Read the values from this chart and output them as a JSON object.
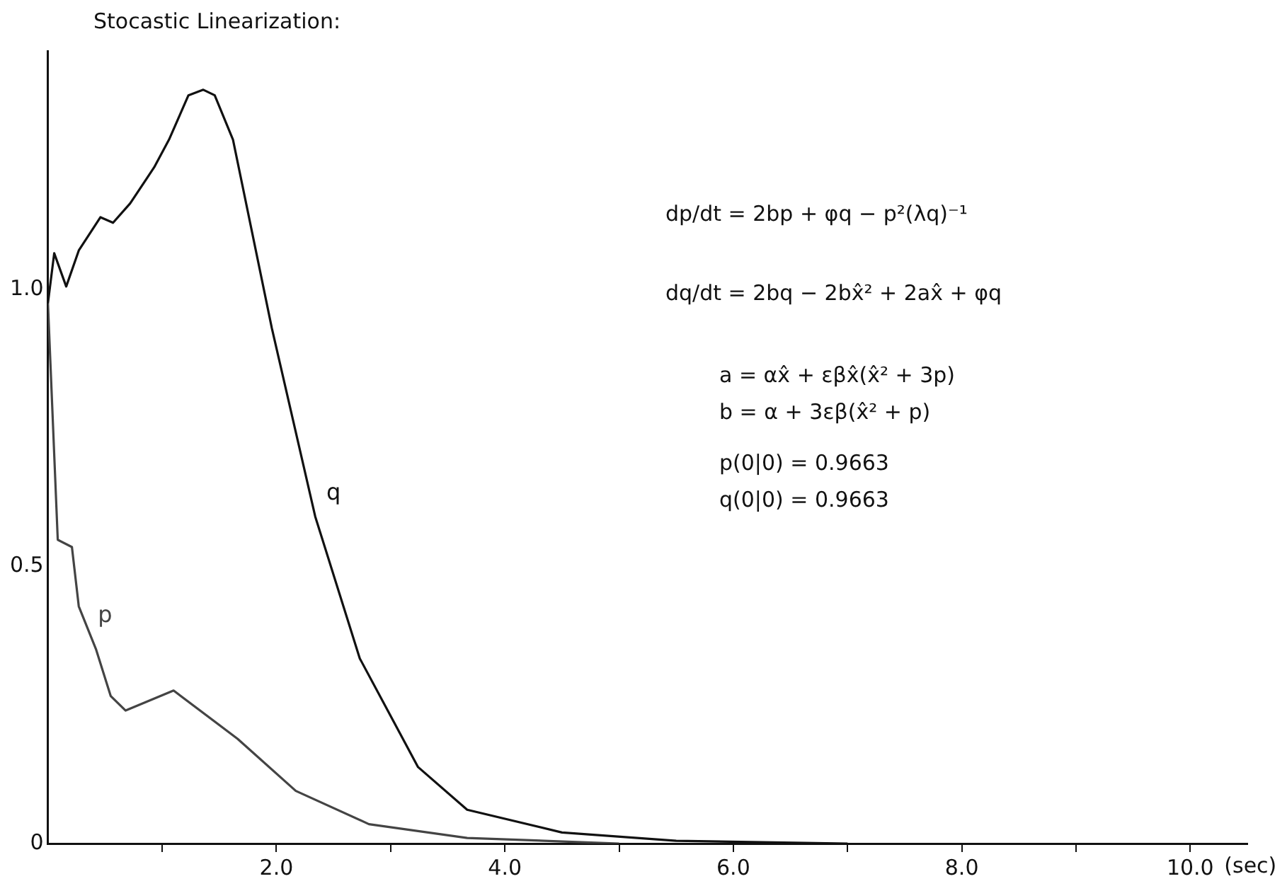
{
  "chart_data": {
    "type": "line",
    "title": "Stocastic Linearization:",
    "xlabel": "(sec)",
    "xlim": [
      0,
      10.5
    ],
    "xticks": [
      {
        "value": 1,
        "label": null
      },
      {
        "value": 2,
        "label": "2.0"
      },
      {
        "value": 3,
        "label": null
      },
      {
        "value": 4,
        "label": "4.0"
      },
      {
        "value": 5,
        "label": null
      },
      {
        "value": 6,
        "label": "6.0"
      },
      {
        "value": 7,
        "label": null
      },
      {
        "value": 8,
        "label": "8.0"
      },
      {
        "value": 9,
        "label": null
      },
      {
        "value": 10,
        "label": "10.0"
      }
    ],
    "ylim": [
      0,
      1.43
    ],
    "yticks": [
      0,
      0.5,
      {
        "value": 1,
        "label": "1.0"
      }
    ],
    "grid": false,
    "legend": false,
    "marker": "none",
    "line_style": "solid",
    "series": [
      {
        "name": "q",
        "color": "#111111",
        "x": [
          0,
          0.055,
          0.16,
          0.27,
          0.46,
          0.57,
          0.72,
          0.93,
          1.06,
          1.23,
          1.36,
          1.46,
          1.62,
          1.96,
          2.34,
          2.73,
          3.24,
          3.67,
          4.5,
          5.5,
          7
        ],
        "values": [
          0.975,
          1.065,
          1.005,
          1.07,
          1.13,
          1.12,
          1.155,
          1.22,
          1.27,
          1.35,
          1.36,
          1.35,
          1.27,
          0.93,
          0.59,
          0.334,
          0.138,
          0.061,
          0.02,
          0.005,
          0
        ]
      },
      {
        "name": "p",
        "color": "#444444",
        "x": [
          0,
          0.086,
          0.21,
          0.27,
          0.42,
          0.55,
          0.68,
          1.1,
          1.66,
          2.17,
          2.81,
          3.67,
          5
        ],
        "values": [
          0.975,
          0.548,
          0.535,
          0.428,
          0.351,
          0.266,
          0.24,
          0.276,
          0.189,
          0.095,
          0.035,
          0.01,
          0
        ]
      }
    ],
    "annotations": [
      "dp/dt = 2bp + φq − p²(λq)⁻¹",
      "dq/dt = 2bq − 2bx̂² + 2ax̂ + φq",
      "a = αx̂ + εβx̂(x̂² + 3p)",
      "b = α + 3εβ(x̂² + p)",
      "p(0|0) = 0.9663",
      "q(0|0) = 0.9663"
    ]
  }
}
